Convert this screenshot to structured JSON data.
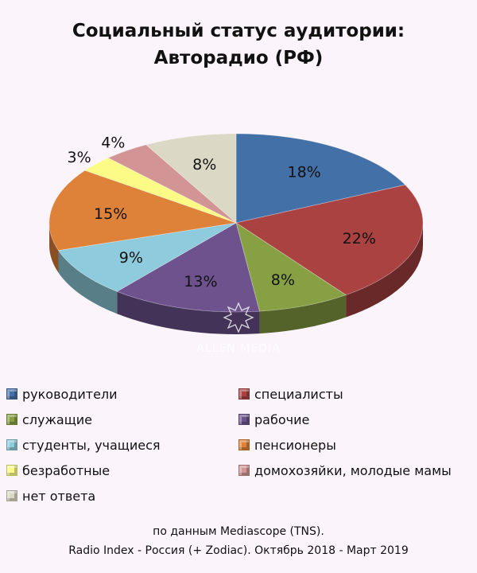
{
  "title": {
    "line1": "Социальный статус аудитории:",
    "line2": "Авторадио (РФ)"
  },
  "chart_data": {
    "type": "pie",
    "style": "3d",
    "categories": [
      "руководители",
      "специалисты",
      "служащие",
      "рабочие",
      "студенты, учащиеся",
      "пенсионеры",
      "безработные",
      "домохозяйки, молодые мамы",
      "нет ответа"
    ],
    "values": [
      18,
      22,
      8,
      13,
      9,
      15,
      3,
      4,
      8
    ],
    "value_labels": [
      "18%",
      "22%",
      "8%",
      "13%",
      "9%",
      "15%",
      "3%",
      "4%",
      "8%"
    ],
    "colors": [
      "#4470a8",
      "#a94240",
      "#86a043",
      "#6d528e",
      "#8ecbdc",
      "#de8139",
      "#fbfb86",
      "#d29494",
      "#dcd8c6"
    ],
    "legend_position": "bottom"
  },
  "watermark": "ALLEN MEDIA",
  "source": {
    "line1": "по данным Mediascope (TNS).",
    "line2": "Radio Index - Россия (+ Zodiac). Октябрь 2018 - Март 2019"
  }
}
